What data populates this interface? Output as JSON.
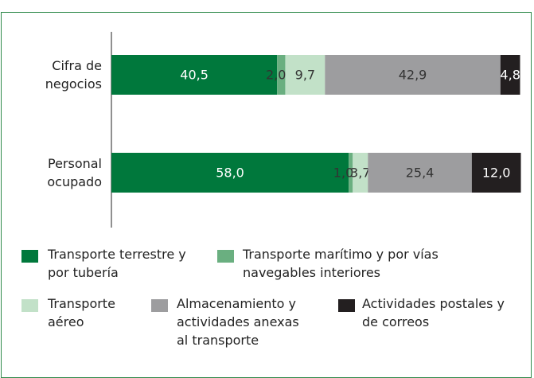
{
  "chart_data": {
    "type": "stacked-bar-horizontal",
    "categories": [
      "Cifra de negocios",
      "Personal ocupado"
    ],
    "xlim": [
      0,
      100
    ],
    "series": [
      {
        "name": "Transporte terrestre y por tubería",
        "color": "#00783c",
        "values": [
          40.5,
          58.0
        ],
        "value_labels": [
          "40,5",
          "58,0"
        ]
      },
      {
        "name": "Transporte marítimo y por vías navegables interiores",
        "color": "#6aaf80",
        "values": [
          2.0,
          1.0
        ],
        "value_labels": [
          "2,0",
          "1,0"
        ]
      },
      {
        "name": "Transporte aéreo",
        "color": "#c2e1c8",
        "values": [
          9.7,
          3.7
        ],
        "value_labels": [
          "9,7",
          "3,7"
        ]
      },
      {
        "name": "Almacenamiento y actividades anexas al transporte",
        "color": "#9d9d9f",
        "values": [
          42.9,
          25.4
        ],
        "value_labels": [
          "42,9",
          "25,4"
        ]
      },
      {
        "name": "Actividades postales y de correos",
        "color": "#231f20",
        "values": [
          4.8,
          12.0
        ],
        "value_labels": [
          "4,8",
          "12,0"
        ]
      }
    ]
  }
}
